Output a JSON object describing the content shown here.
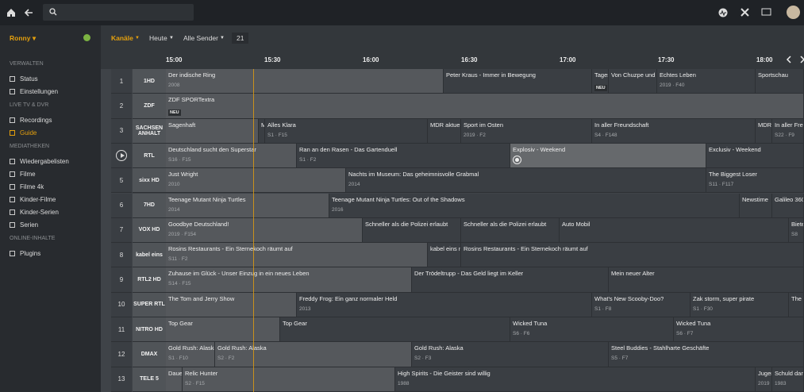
{
  "sidebar": {
    "user": "Ronny",
    "sections": [
      {
        "title": "VERWALTEN",
        "items": [
          {
            "label": "Status"
          },
          {
            "label": "Einstellungen"
          }
        ]
      },
      {
        "title": "LIVE TV & DVR",
        "items": [
          {
            "label": "Recordings"
          },
          {
            "label": "Guide",
            "active": true
          }
        ]
      },
      {
        "title": "MEDIATHEKEN",
        "items": [
          {
            "label": "Wiedergabelisten"
          },
          {
            "label": "Filme"
          },
          {
            "label": "Filme 4k"
          },
          {
            "label": "Kinder-Filme"
          },
          {
            "label": "Kinder-Serien"
          },
          {
            "label": "Serien"
          }
        ]
      },
      {
        "title": "ONLINE-INHALTE",
        "items": [
          {
            "label": "Plugins"
          }
        ]
      }
    ]
  },
  "filters": {
    "channels": "Kanäle",
    "day": "Heute",
    "group": "Alle Sender",
    "count": "21"
  },
  "times": [
    "15:00",
    "15:30",
    "16:00",
    "16:30",
    "17:00",
    "17:30",
    "18:00"
  ],
  "channels": [
    {
      "number": "1",
      "logo": "1HD",
      "programs": [
        {
          "title": "Der indische Ring",
          "info": "2008"
        },
        {
          "title": "Peter Kraus - Immer in Bewegung"
        },
        {
          "title": "Tages",
          "badge": "NEU"
        },
        {
          "title": "Von Chuzpe und S"
        },
        {
          "title": "Echtes Leben",
          "info": "2019 · F40"
        },
        {
          "title": "Sportschau"
        }
      ]
    },
    {
      "number": "2",
      "logo": "ZDF",
      "programs": [
        {
          "title": "ZDF SPORTextra",
          "badge": "NEU"
        }
      ]
    },
    {
      "number": "3",
      "logo": "SACHSEN ANHALT",
      "programs": [
        {
          "title": "Sagenhaft"
        },
        {
          "title": "M"
        },
        {
          "title": "Alles Klara",
          "info": "S1 · F15"
        },
        {
          "title": "MDR aktuell"
        },
        {
          "title": "Sport im Osten",
          "info": "2019 · F2"
        },
        {
          "title": "In aller Freundschaft",
          "info": "S4 · F148"
        },
        {
          "title": "MDR"
        },
        {
          "title": "In aller Freu",
          "info": "S22 · F9"
        }
      ]
    },
    {
      "logo": "RTL",
      "playing": true,
      "programs": [
        {
          "title": "Deutschland sucht den Superstar",
          "info": "S16 · F15"
        },
        {
          "title": "Ran an den Rasen - Das Gartenduell",
          "info": "S1 · F2"
        },
        {
          "title": "Explosiv - Weekend",
          "recording": true
        },
        {
          "title": "Exclusiv - Weekend"
        }
      ]
    },
    {
      "number": "5",
      "logo": "sixx HD",
      "programs": [
        {
          "title": "Just Wright",
          "info": "2010"
        },
        {
          "title": "Nachts im Museum: Das geheimnisvolle Grabmal",
          "info": "2014"
        },
        {
          "title": "The Biggest Loser",
          "info": "S11 · F117"
        }
      ]
    },
    {
      "number": "6",
      "logo": "7HD",
      "programs": [
        {
          "title": "Teenage Mutant Ninja Turtles",
          "info": "2014"
        },
        {
          "title": "Teenage Mutant Ninja Turtles: Out of the Shadows",
          "info": "2016"
        },
        {
          "title": "Newstime"
        },
        {
          "title": "Galileo 360"
        }
      ]
    },
    {
      "number": "7",
      "logo": "VOX HD",
      "programs": [
        {
          "title": "Goodbye Deutschland!",
          "info": "2019 · F154"
        },
        {
          "title": "Schneller als die Polizei erlaubt"
        },
        {
          "title": "Schneller als die Polizei erlaubt"
        },
        {
          "title": "Auto Mobil"
        },
        {
          "title": "Biete",
          "info": "S8"
        }
      ]
    },
    {
      "number": "8",
      "logo": "kabel eins",
      "programs": [
        {
          "title": "Rosins Restaurants - Ein Sternekoch räumt auf",
          "info": "S11 · F2"
        },
        {
          "title": "kabel eins n"
        },
        {
          "title": "Rosins Restaurants - Ein Sternekoch räumt auf"
        }
      ]
    },
    {
      "number": "9",
      "logo": "RTL2 HD",
      "programs": [
        {
          "title": "Zuhause im Glück - Unser Einzug in ein neues Leben",
          "info": "S14 · F15"
        },
        {
          "title": "Der Trödeltrupp - Das Geld liegt im Keller"
        },
        {
          "title": "Mein neuer Alter"
        }
      ]
    },
    {
      "number": "10",
      "logo": "SUPER RTL",
      "programs": [
        {
          "title": "The Tom and Jerry Show"
        },
        {
          "title": "Freddy Frog: Ein ganz normaler Held",
          "info": "2013"
        },
        {
          "title": "What's New Scooby-Doo?",
          "info": "S1 · F8"
        },
        {
          "title": "Zak storm, super pirate",
          "info": "S1 · F30"
        },
        {
          "title": "The T"
        }
      ]
    },
    {
      "number": "11",
      "logo": "NITRO HD",
      "programs": [
        {
          "title": "Top Gear"
        },
        {
          "title": "Top Gear"
        },
        {
          "title": "Wicked Tuna",
          "info": "S6 · F6"
        },
        {
          "title": "Wicked Tuna",
          "info": "S6 · F7"
        }
      ]
    },
    {
      "number": "12",
      "logo": "DMAX",
      "programs": [
        {
          "title": "Gold Rush: Alaska",
          "info": "S1 · F10"
        },
        {
          "title": "Gold Rush: Alaska",
          "info": "S2 · F2"
        },
        {
          "title": "Gold Rush: Alaska",
          "info": "S2 · F3"
        },
        {
          "title": "Steel Buddies - Stahlharte Geschäfte",
          "info": "S5 · F7"
        }
      ]
    },
    {
      "number": "13",
      "logo": "TELE 5",
      "programs": [
        {
          "title": "Daue"
        },
        {
          "title": "Relic Hunter",
          "info": "S2 · F15"
        },
        {
          "title": "High Spirits - Die Geister sind willig",
          "info": "1988"
        },
        {
          "title": "Jugen",
          "info": "2019"
        },
        {
          "title": "Schuld dar",
          "info": "1983"
        }
      ]
    }
  ]
}
